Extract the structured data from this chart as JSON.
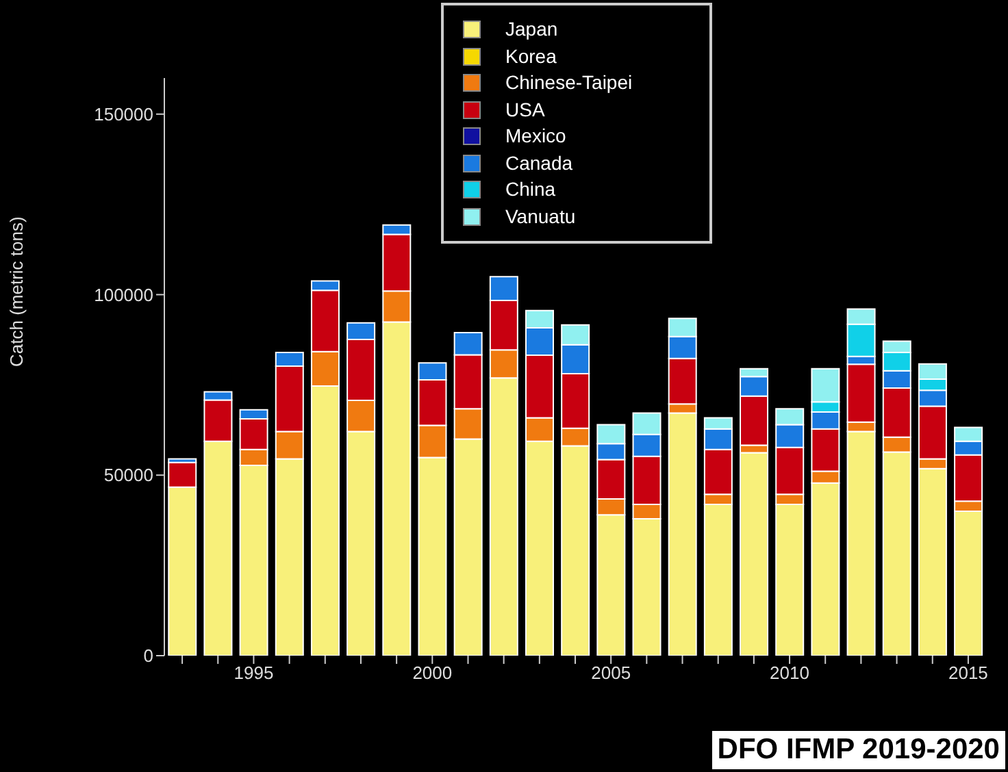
{
  "chart_data": {
    "type": "bar",
    "stacked": true,
    "ylabel": "Catch (metric tons)",
    "categories": [
      null,
      null,
      "1995",
      null,
      null,
      null,
      null,
      "2000",
      null,
      null,
      null,
      null,
      "2005",
      null,
      null,
      null,
      null,
      "2010",
      null,
      null,
      null,
      null,
      "2015"
    ],
    "series": [
      {
        "name": "Japan",
        "color": "#f8f07a",
        "values": [
          46700,
          59400,
          52700,
          54500,
          74700,
          62100,
          92400,
          54900,
          60000,
          76900,
          59400,
          58100,
          39000,
          37900,
          67200,
          41900,
          56200,
          41900,
          47800,
          62100,
          56400,
          51800,
          40000
        ]
      },
      {
        "name": "Korea",
        "color": "#f5d800",
        "values": [
          0,
          0,
          0,
          0,
          0,
          0,
          0,
          0,
          0,
          0,
          0,
          0,
          0,
          0,
          0,
          0,
          0,
          0,
          0,
          0,
          0,
          0,
          0
        ]
      },
      {
        "name": "Chinese-Taipei",
        "color": "#f07a10",
        "values": [
          0,
          0,
          4400,
          7600,
          9500,
          8600,
          8600,
          8900,
          8400,
          7800,
          6500,
          4900,
          4400,
          4000,
          2500,
          2800,
          2100,
          2800,
          3300,
          2600,
          4100,
          2700,
          2800
        ]
      },
      {
        "name": "USA",
        "color": "#c80010",
        "values": [
          6800,
          11400,
          8500,
          18100,
          17000,
          16900,
          15700,
          12600,
          14900,
          13700,
          17300,
          15100,
          10900,
          13300,
          12600,
          12400,
          13600,
          13000,
          11700,
          16000,
          13600,
          14600,
          12800
        ]
      },
      {
        "name": "Mexico",
        "color": "#1010a0",
        "values": [
          0,
          0,
          0,
          0,
          0,
          0,
          0,
          0,
          0,
          0,
          0,
          0,
          0,
          0,
          0,
          0,
          0,
          0,
          0,
          0,
          0,
          0,
          0
        ]
      },
      {
        "name": "Canada",
        "color": "#1a7ae0",
        "values": [
          1000,
          2300,
          2500,
          3800,
          2600,
          4600,
          2600,
          4700,
          6200,
          6600,
          7600,
          8000,
          4400,
          6100,
          6100,
          5700,
          5400,
          6300,
          4700,
          2200,
          4800,
          4400,
          3800
        ]
      },
      {
        "name": "China",
        "color": "#10d0e8",
        "values": [
          0,
          0,
          0,
          0,
          0,
          0,
          0,
          0,
          0,
          0,
          0,
          0,
          0,
          0,
          0,
          0,
          0,
          0,
          2800,
          8900,
          5100,
          3100,
          0
        ]
      },
      {
        "name": "Vanuatu",
        "color": "#90f0f0",
        "values": [
          0,
          0,
          0,
          0,
          0,
          0,
          0,
          0,
          0,
          0,
          4800,
          5500,
          5300,
          5900,
          5000,
          3100,
          2200,
          4400,
          9200,
          4200,
          3100,
          4200,
          3800
        ]
      }
    ],
    "ylim": [
      0,
      160000
    ],
    "yticks": [
      0,
      50000,
      100000,
      150000
    ],
    "legend": "top",
    "annotations": [
      "DFO IFMP 2019-2020"
    ]
  }
}
